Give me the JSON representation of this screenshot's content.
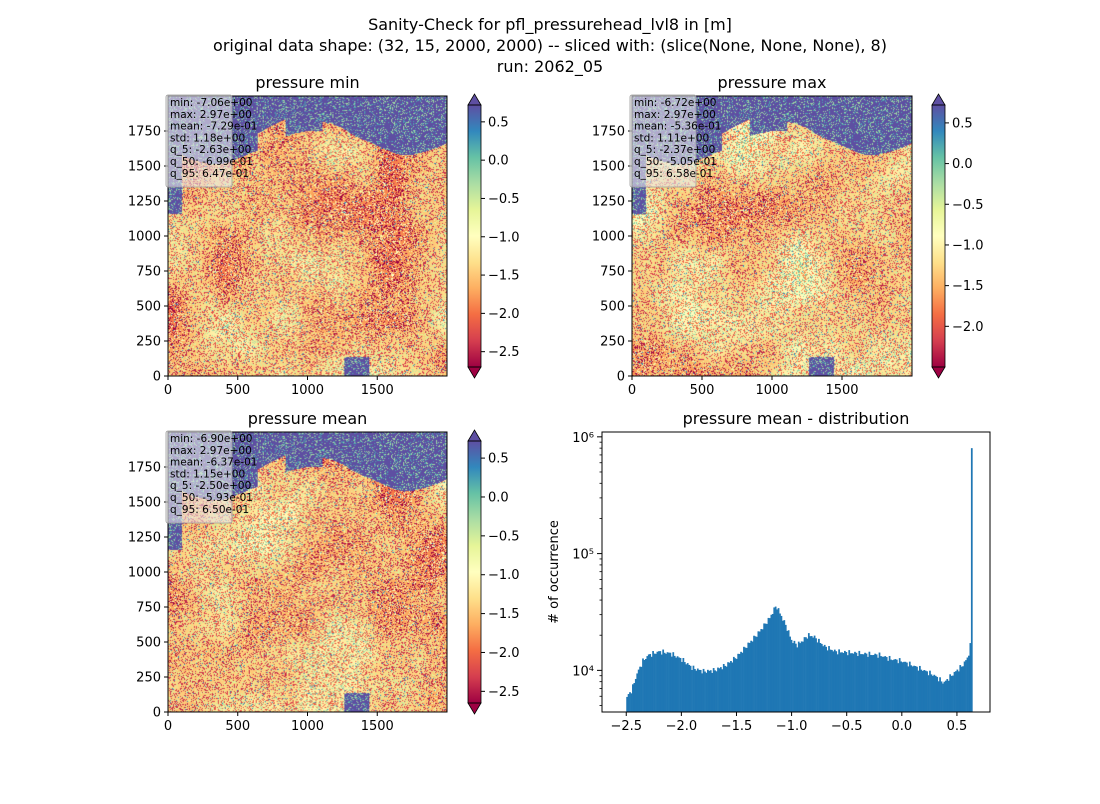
{
  "figure": {
    "title_lines": [
      "Sanity-Check for pfl_pressurehead_lvl8 in [m]",
      "original data shape: (32, 15, 2000, 2000) -- sliced with: (slice(None, None, None), 8)",
      "run: 2062_05"
    ]
  },
  "colors": {
    "spectral": [
      "#9e0142",
      "#d53e4f",
      "#f46d43",
      "#fdae61",
      "#fee08b",
      "#ffffbf",
      "#e6f598",
      "#abdda4",
      "#66c2a5",
      "#3288bd",
      "#5e4fa2"
    ],
    "histogram": "#1f77b4",
    "sea": "#5e4fa2"
  },
  "chart_data": [
    {
      "type": "heatmap",
      "title": "pressure min",
      "x_ticks": [
        0,
        500,
        1000,
        1500
      ],
      "y_ticks": [
        0,
        250,
        500,
        750,
        1000,
        1250,
        1500,
        1750
      ],
      "xlim": [
        0,
        2000
      ],
      "ylim": [
        0,
        2000
      ],
      "colormap": "Spectral",
      "colorbar_range": [
        -2.7,
        0.72
      ],
      "colorbar_ticks": [
        0.5,
        0.0,
        -0.5,
        -1.0,
        -1.5,
        -2.0,
        -2.5
      ],
      "colorbar_labels": [
        "0.5",
        "0.0",
        "−0.5",
        "−1.0",
        "−1.5",
        "−2.0",
        "−2.5"
      ],
      "stats": [
        "min: -7.06e+00",
        "max: 2.97e+00",
        "mean: -7.29e-01",
        "std: 1.18e+00",
        "q_5: -2.63e+00",
        "q_50: -6.99e-01",
        "q_95: 6.47e-01"
      ]
    },
    {
      "type": "heatmap",
      "title": "pressure max",
      "x_ticks": [
        0,
        500,
        1000,
        1500
      ],
      "y_ticks": [
        0,
        250,
        500,
        750,
        1000,
        1250,
        1500,
        1750
      ],
      "xlim": [
        0,
        2000
      ],
      "ylim": [
        0,
        2000
      ],
      "colormap": "Spectral",
      "colorbar_range": [
        -2.5,
        0.72
      ],
      "colorbar_ticks": [
        0.5,
        0.0,
        -0.5,
        -1.0,
        -1.5,
        -2.0
      ],
      "colorbar_labels": [
        "0.5",
        "0.0",
        "−0.5",
        "−1.0",
        "−1.5",
        "−2.0"
      ],
      "stats": [
        "min: -6.72e+00",
        "max: 2.97e+00",
        "mean: -5.36e-01",
        "std: 1.11e+00",
        "q_5: -2.37e+00",
        "q_50: -5.05e-01",
        "q_95: 6.58e-01"
      ]
    },
    {
      "type": "heatmap",
      "title": "pressure mean",
      "x_ticks": [
        0,
        500,
        1000,
        1500
      ],
      "y_ticks": [
        0,
        250,
        500,
        750,
        1000,
        1250,
        1500,
        1750
      ],
      "xlim": [
        0,
        2000
      ],
      "ylim": [
        0,
        2000
      ],
      "colormap": "Spectral",
      "colorbar_range": [
        -2.65,
        0.72
      ],
      "colorbar_ticks": [
        0.5,
        0.0,
        -0.5,
        -1.0,
        -1.5,
        -2.0,
        -2.5
      ],
      "colorbar_labels": [
        "0.5",
        "0.0",
        "−0.5",
        "−1.0",
        "−1.5",
        "−2.0",
        "−2.5"
      ],
      "stats": [
        "min: -6.90e+00",
        "max: 2.97e+00",
        "mean: -6.37e-01",
        "std: 1.15e+00",
        "q_5: -2.50e+00",
        "q_50: -5.93e-01",
        "q_95: 6.50e-01"
      ]
    },
    {
      "type": "bar",
      "title": "pressure mean - distribution",
      "ylabel": "# of occurrence",
      "y_scale": "log",
      "xlim": [
        -2.72,
        0.8
      ],
      "ylim": [
        4400,
        1100000
      ],
      "x_ticks": [
        -2.5,
        -2.0,
        -1.5,
        -1.0,
        -0.5,
        0.0,
        0.5
      ],
      "x_tick_labels": [
        "−2.5",
        "−2.0",
        "−1.5",
        "−1.0",
        "−0.5",
        "0.0",
        "0.5"
      ],
      "y_ticks": [
        10000,
        100000,
        1000000
      ],
      "y_tick_labels": [
        "10⁴",
        "10⁵",
        "10⁶"
      ],
      "bin_range": [
        -2.5,
        0.64
      ],
      "control_points": [
        [
          -2.5,
          5800
        ],
        [
          -2.45,
          6800
        ],
        [
          -2.4,
          9500
        ],
        [
          -2.35,
          12000
        ],
        [
          -2.3,
          13500
        ],
        [
          -2.2,
          14500
        ],
        [
          -2.1,
          14000
        ],
        [
          -2.0,
          12500
        ],
        [
          -1.9,
          10500
        ],
        [
          -1.8,
          9800
        ],
        [
          -1.7,
          10000
        ],
        [
          -1.6,
          11000
        ],
        [
          -1.5,
          13000
        ],
        [
          -1.4,
          16500
        ],
        [
          -1.3,
          21000
        ],
        [
          -1.2,
          28000
        ],
        [
          -1.14,
          36000
        ],
        [
          -1.1,
          30000
        ],
        [
          -1.05,
          24000
        ],
        [
          -1.0,
          18000
        ],
        [
          -0.95,
          16500
        ],
        [
          -0.9,
          18000
        ],
        [
          -0.85,
          20000
        ],
        [
          -0.8,
          19500
        ],
        [
          -0.7,
          16000
        ],
        [
          -0.6,
          14500
        ],
        [
          -0.4,
          14000
        ],
        [
          -0.2,
          13500
        ],
        [
          -0.1,
          12500
        ],
        [
          0.0,
          12000
        ],
        [
          0.1,
          11000
        ],
        [
          0.2,
          10000
        ],
        [
          0.3,
          9000
        ],
        [
          0.38,
          7800
        ],
        [
          0.42,
          8500
        ],
        [
          0.5,
          10000
        ],
        [
          0.55,
          11000
        ],
        [
          0.6,
          13000
        ],
        [
          0.62,
          16000
        ],
        [
          0.63,
          27000
        ],
        [
          0.64,
          800000
        ]
      ]
    }
  ]
}
